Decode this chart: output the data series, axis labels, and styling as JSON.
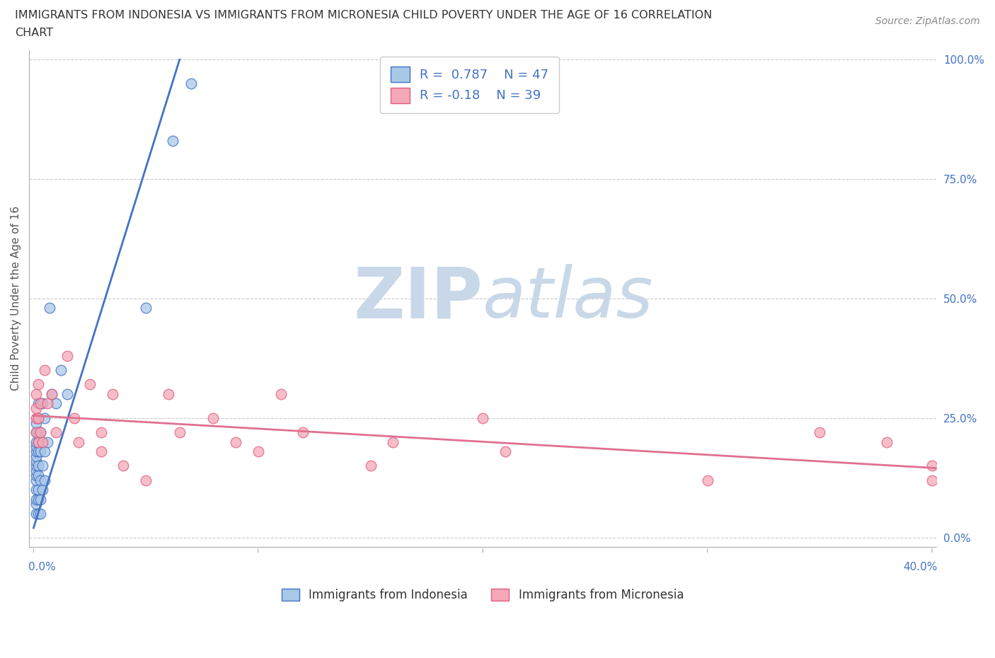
{
  "title_line1": "IMMIGRANTS FROM INDONESIA VS IMMIGRANTS FROM MICRONESIA CHILD POVERTY UNDER THE AGE OF 16 CORRELATION",
  "title_line2": "CHART",
  "source_text": "Source: ZipAtlas.com",
  "ylabel": "Child Poverty Under the Age of 16",
  "xlabel_indonesia": "Immigrants from Indonesia",
  "xlabel_micronesia": "Immigrants from Micronesia",
  "xlim": [
    -0.002,
    0.402
  ],
  "ylim": [
    -0.02,
    1.02
  ],
  "xticks": [
    0.0,
    0.1,
    0.2,
    0.3,
    0.4
  ],
  "yticks": [
    0.0,
    0.25,
    0.5,
    0.75,
    1.0
  ],
  "xtick_labels_left": "0.0%",
  "xtick_labels_right": "40.0%",
  "ytick_labels": [
    "0.0%",
    "25.0%",
    "50.0%",
    "75.0%",
    "100.0%"
  ],
  "indonesia_color": "#a8c8e8",
  "micronesia_color": "#f4a8b8",
  "indonesia_edge_color": "#4472c4",
  "micronesia_edge_color": "#e06080",
  "trend_indonesia_color": "#4472c4",
  "trend_micronesia_color": "#e07090",
  "R_indonesia": 0.787,
  "N_indonesia": 47,
  "R_micronesia": -0.18,
  "N_micronesia": 39,
  "watermark_zip": "ZIP",
  "watermark_atlas": "atlas",
  "watermark_color": "#c8d8e8",
  "indonesia_x": [
    0.001,
    0.001,
    0.001,
    0.001,
    0.001,
    0.001,
    0.001,
    0.001,
    0.001,
    0.001,
    0.001,
    0.001,
    0.001,
    0.001,
    0.001,
    0.002,
    0.002,
    0.002,
    0.002,
    0.002,
    0.002,
    0.002,
    0.002,
    0.002,
    0.002,
    0.003,
    0.003,
    0.003,
    0.003,
    0.003,
    0.003,
    0.004,
    0.004,
    0.004,
    0.004,
    0.005,
    0.005,
    0.005,
    0.006,
    0.007,
    0.008,
    0.01,
    0.012,
    0.015,
    0.05,
    0.062,
    0.07
  ],
  "indonesia_y": [
    0.05,
    0.07,
    0.08,
    0.1,
    0.12,
    0.13,
    0.14,
    0.15,
    0.16,
    0.17,
    0.18,
    0.19,
    0.2,
    0.22,
    0.24,
    0.05,
    0.08,
    0.1,
    0.13,
    0.15,
    0.18,
    0.2,
    0.22,
    0.25,
    0.28,
    0.05,
    0.08,
    0.12,
    0.18,
    0.22,
    0.28,
    0.1,
    0.15,
    0.2,
    0.28,
    0.12,
    0.18,
    0.25,
    0.2,
    0.48,
    0.3,
    0.28,
    0.35,
    0.3,
    0.48,
    0.83,
    0.95
  ],
  "micronesia_x": [
    0.001,
    0.001,
    0.001,
    0.001,
    0.002,
    0.002,
    0.002,
    0.003,
    0.003,
    0.004,
    0.005,
    0.006,
    0.008,
    0.01,
    0.015,
    0.018,
    0.02,
    0.025,
    0.03,
    0.03,
    0.035,
    0.04,
    0.05,
    0.06,
    0.065,
    0.08,
    0.09,
    0.1,
    0.11,
    0.12,
    0.15,
    0.16,
    0.2,
    0.21,
    0.3,
    0.35,
    0.38,
    0.4,
    0.4
  ],
  "micronesia_y": [
    0.22,
    0.25,
    0.27,
    0.3,
    0.2,
    0.25,
    0.32,
    0.22,
    0.28,
    0.2,
    0.35,
    0.28,
    0.3,
    0.22,
    0.38,
    0.25,
    0.2,
    0.32,
    0.18,
    0.22,
    0.3,
    0.15,
    0.12,
    0.3,
    0.22,
    0.25,
    0.2,
    0.18,
    0.3,
    0.22,
    0.15,
    0.2,
    0.25,
    0.18,
    0.12,
    0.22,
    0.2,
    0.12,
    0.15
  ],
  "indo_trend_x": [
    0.0,
    0.065
  ],
  "indo_trend_y": [
    0.02,
    1.0
  ],
  "micro_trend_x": [
    0.0,
    0.402
  ],
  "micro_trend_y": [
    0.255,
    0.145
  ]
}
